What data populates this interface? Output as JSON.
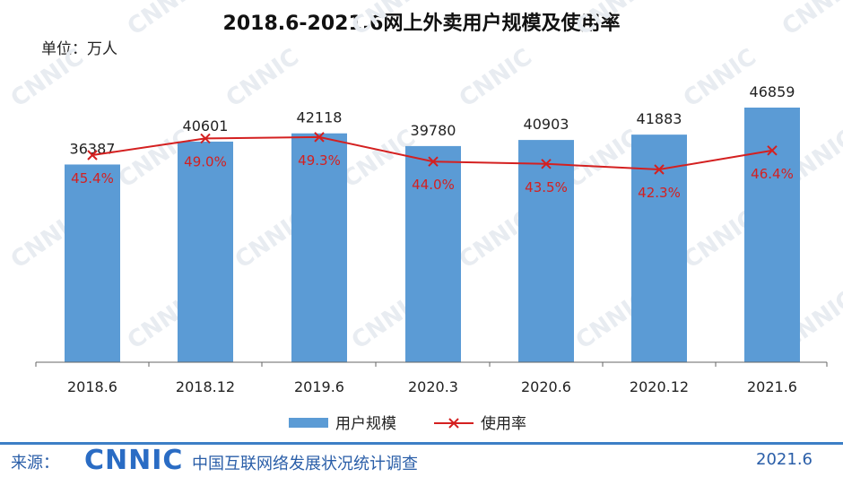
{
  "title": "2018.6-2021.6网上外卖用户规模及使用率",
  "unit": "单位：万人",
  "footer": {
    "source_label": "来源：",
    "logo": "CNNIC",
    "organization": "中国互联网络发展状况统计调查",
    "date": "2021.6"
  },
  "watermark": "CNNIC",
  "colors": {
    "bar": "#5b9bd5",
    "line": "#d42020",
    "footer": "#3d7fc6"
  },
  "chart_data": {
    "type": "bar",
    "categories": [
      "2018.6",
      "2018.12",
      "2019.6",
      "2020.3",
      "2020.6",
      "2020.12",
      "2021.6"
    ],
    "series": [
      {
        "name": "用户规模",
        "type": "bar",
        "values": [
          36387,
          40601,
          42118,
          39780,
          40903,
          41883,
          46859
        ],
        "labels": [
          "36387",
          "40601",
          "42118",
          "39780",
          "40903",
          "41883",
          "46859"
        ]
      },
      {
        "name": "使用率",
        "type": "line",
        "marker": "x",
        "values": [
          45.4,
          49.0,
          49.3,
          44.0,
          43.5,
          42.3,
          46.4
        ],
        "labels": [
          "45.4%",
          "49.0%",
          "49.3%",
          "44.0%",
          "43.5%",
          "42.3%",
          "46.4%"
        ]
      }
    ],
    "legend": [
      "用户规模",
      "使用率"
    ],
    "legend_position": "bottom",
    "grid": false
  }
}
